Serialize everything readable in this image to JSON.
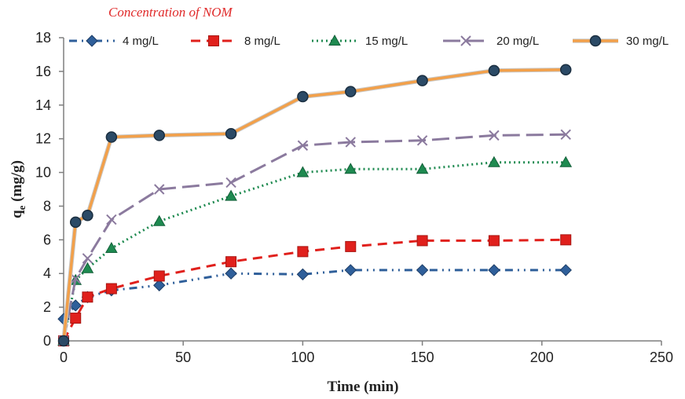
{
  "annotation": "Concentration of NOM",
  "colors": {
    "axis": "#7f7f7f",
    "s4": "#2f5f9a",
    "s8": "#e0201c",
    "s15": "#1e8a50",
    "s20": "#8b7a9e",
    "s30": "#f2a04a",
    "marker30": "#2b4a66"
  },
  "chart_data": {
    "type": "line",
    "xlabel": "Time (min)",
    "ylabel_main": "q",
    "ylabel_sub": "e",
    "ylabel_unit": " (mg/g)",
    "xlim": [
      0,
      250
    ],
    "ylim": [
      0,
      18
    ],
    "x_ticks": [
      0,
      50,
      100,
      150,
      200,
      250
    ],
    "y_ticks": [
      0,
      2,
      4,
      6,
      8,
      10,
      12,
      14,
      16,
      18
    ],
    "grid": false,
    "legend_position": "top",
    "series": [
      {
        "name": "4 mg/L",
        "marker": "diamond",
        "line_style": "dash-dot",
        "x": [
          0,
          5,
          10,
          20,
          40,
          70,
          100,
          120,
          150,
          180,
          210
        ],
        "y": [
          1.3,
          2.1,
          2.6,
          3.0,
          3.3,
          4.0,
          3.95,
          4.2,
          4.2,
          4.2,
          4.2
        ]
      },
      {
        "name": "8 mg/L",
        "marker": "square",
        "line_style": "dashed",
        "x": [
          0,
          5,
          10,
          20,
          40,
          70,
          100,
          120,
          150,
          180,
          210
        ],
        "y": [
          0.0,
          1.35,
          2.6,
          3.1,
          3.85,
          4.7,
          5.3,
          5.6,
          5.95,
          5.95,
          6.0
        ]
      },
      {
        "name": "15 mg/L",
        "marker": "triangle",
        "line_style": "dotted",
        "x": [
          0,
          5,
          10,
          20,
          40,
          70,
          100,
          120,
          150,
          180,
          210
        ],
        "y": [
          0.0,
          3.6,
          4.3,
          5.5,
          7.1,
          8.6,
          10.0,
          10.2,
          10.2,
          10.6,
          10.6
        ]
      },
      {
        "name": "20 mg/L",
        "marker": "x",
        "line_style": "long-dash",
        "x": [
          0,
          5,
          10,
          20,
          40,
          70,
          100,
          120,
          150,
          180,
          210
        ],
        "y": [
          0.0,
          3.7,
          4.9,
          7.2,
          9.0,
          9.4,
          11.6,
          11.8,
          11.9,
          12.2,
          12.25
        ]
      },
      {
        "name": "30 mg/L",
        "marker": "circle",
        "line_style": "solid",
        "x": [
          0,
          5,
          10,
          20,
          40,
          70,
          100,
          120,
          150,
          180,
          210
        ],
        "y": [
          0.0,
          7.05,
          7.45,
          12.1,
          12.2,
          12.3,
          14.5,
          14.8,
          15.45,
          16.05,
          16.1
        ]
      }
    ]
  }
}
